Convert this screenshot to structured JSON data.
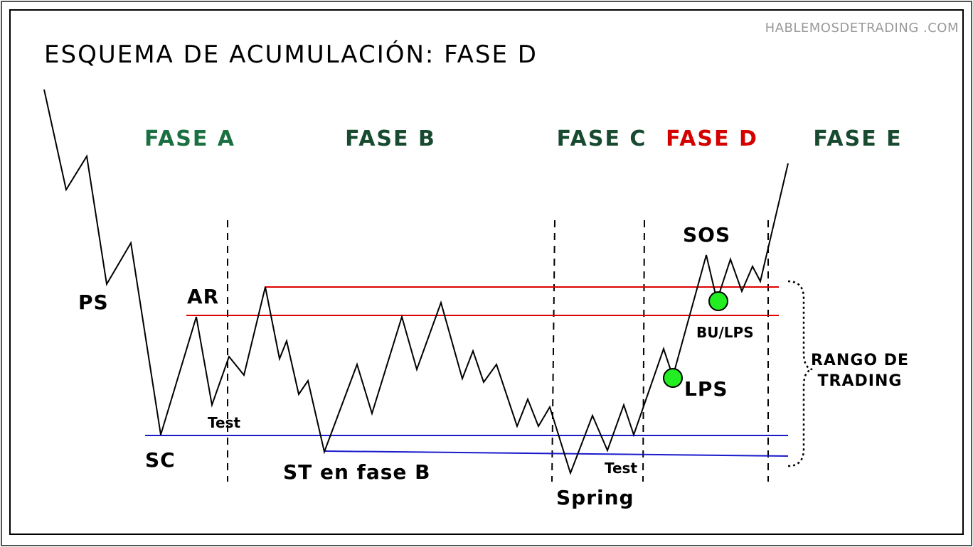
{
  "title": "ESQUEMA DE ACUMULACIÓN: FASE D",
  "watermark": "HABLEMOSDETRADING .COM",
  "phases": [
    {
      "label": "FASE A",
      "color": "#1a7040"
    },
    {
      "label": "FASE B",
      "color": "#184a30"
    },
    {
      "label": "FASE C",
      "color": "#184a30"
    },
    {
      "label": "FASE D",
      "color": "#d40000"
    },
    {
      "label": "FASE E",
      "color": "#184a30"
    }
  ],
  "events": {
    "ps": "PS",
    "ar": "AR",
    "sc": "SC",
    "test_a": "Test",
    "st_b": "ST en fase B",
    "spring": "Spring",
    "test_c": "Test",
    "sos": "SOS",
    "lps": "LPS",
    "bu_lps": "BU/LPS"
  },
  "range_label": {
    "line1": "RANGO DE",
    "line2": "TRADING"
  },
  "colors": {
    "resistance": "#e00000",
    "support": "#1a1acc",
    "price": "#000000",
    "marker": "#22ee22",
    "watermark": "#9a9a9a"
  }
}
